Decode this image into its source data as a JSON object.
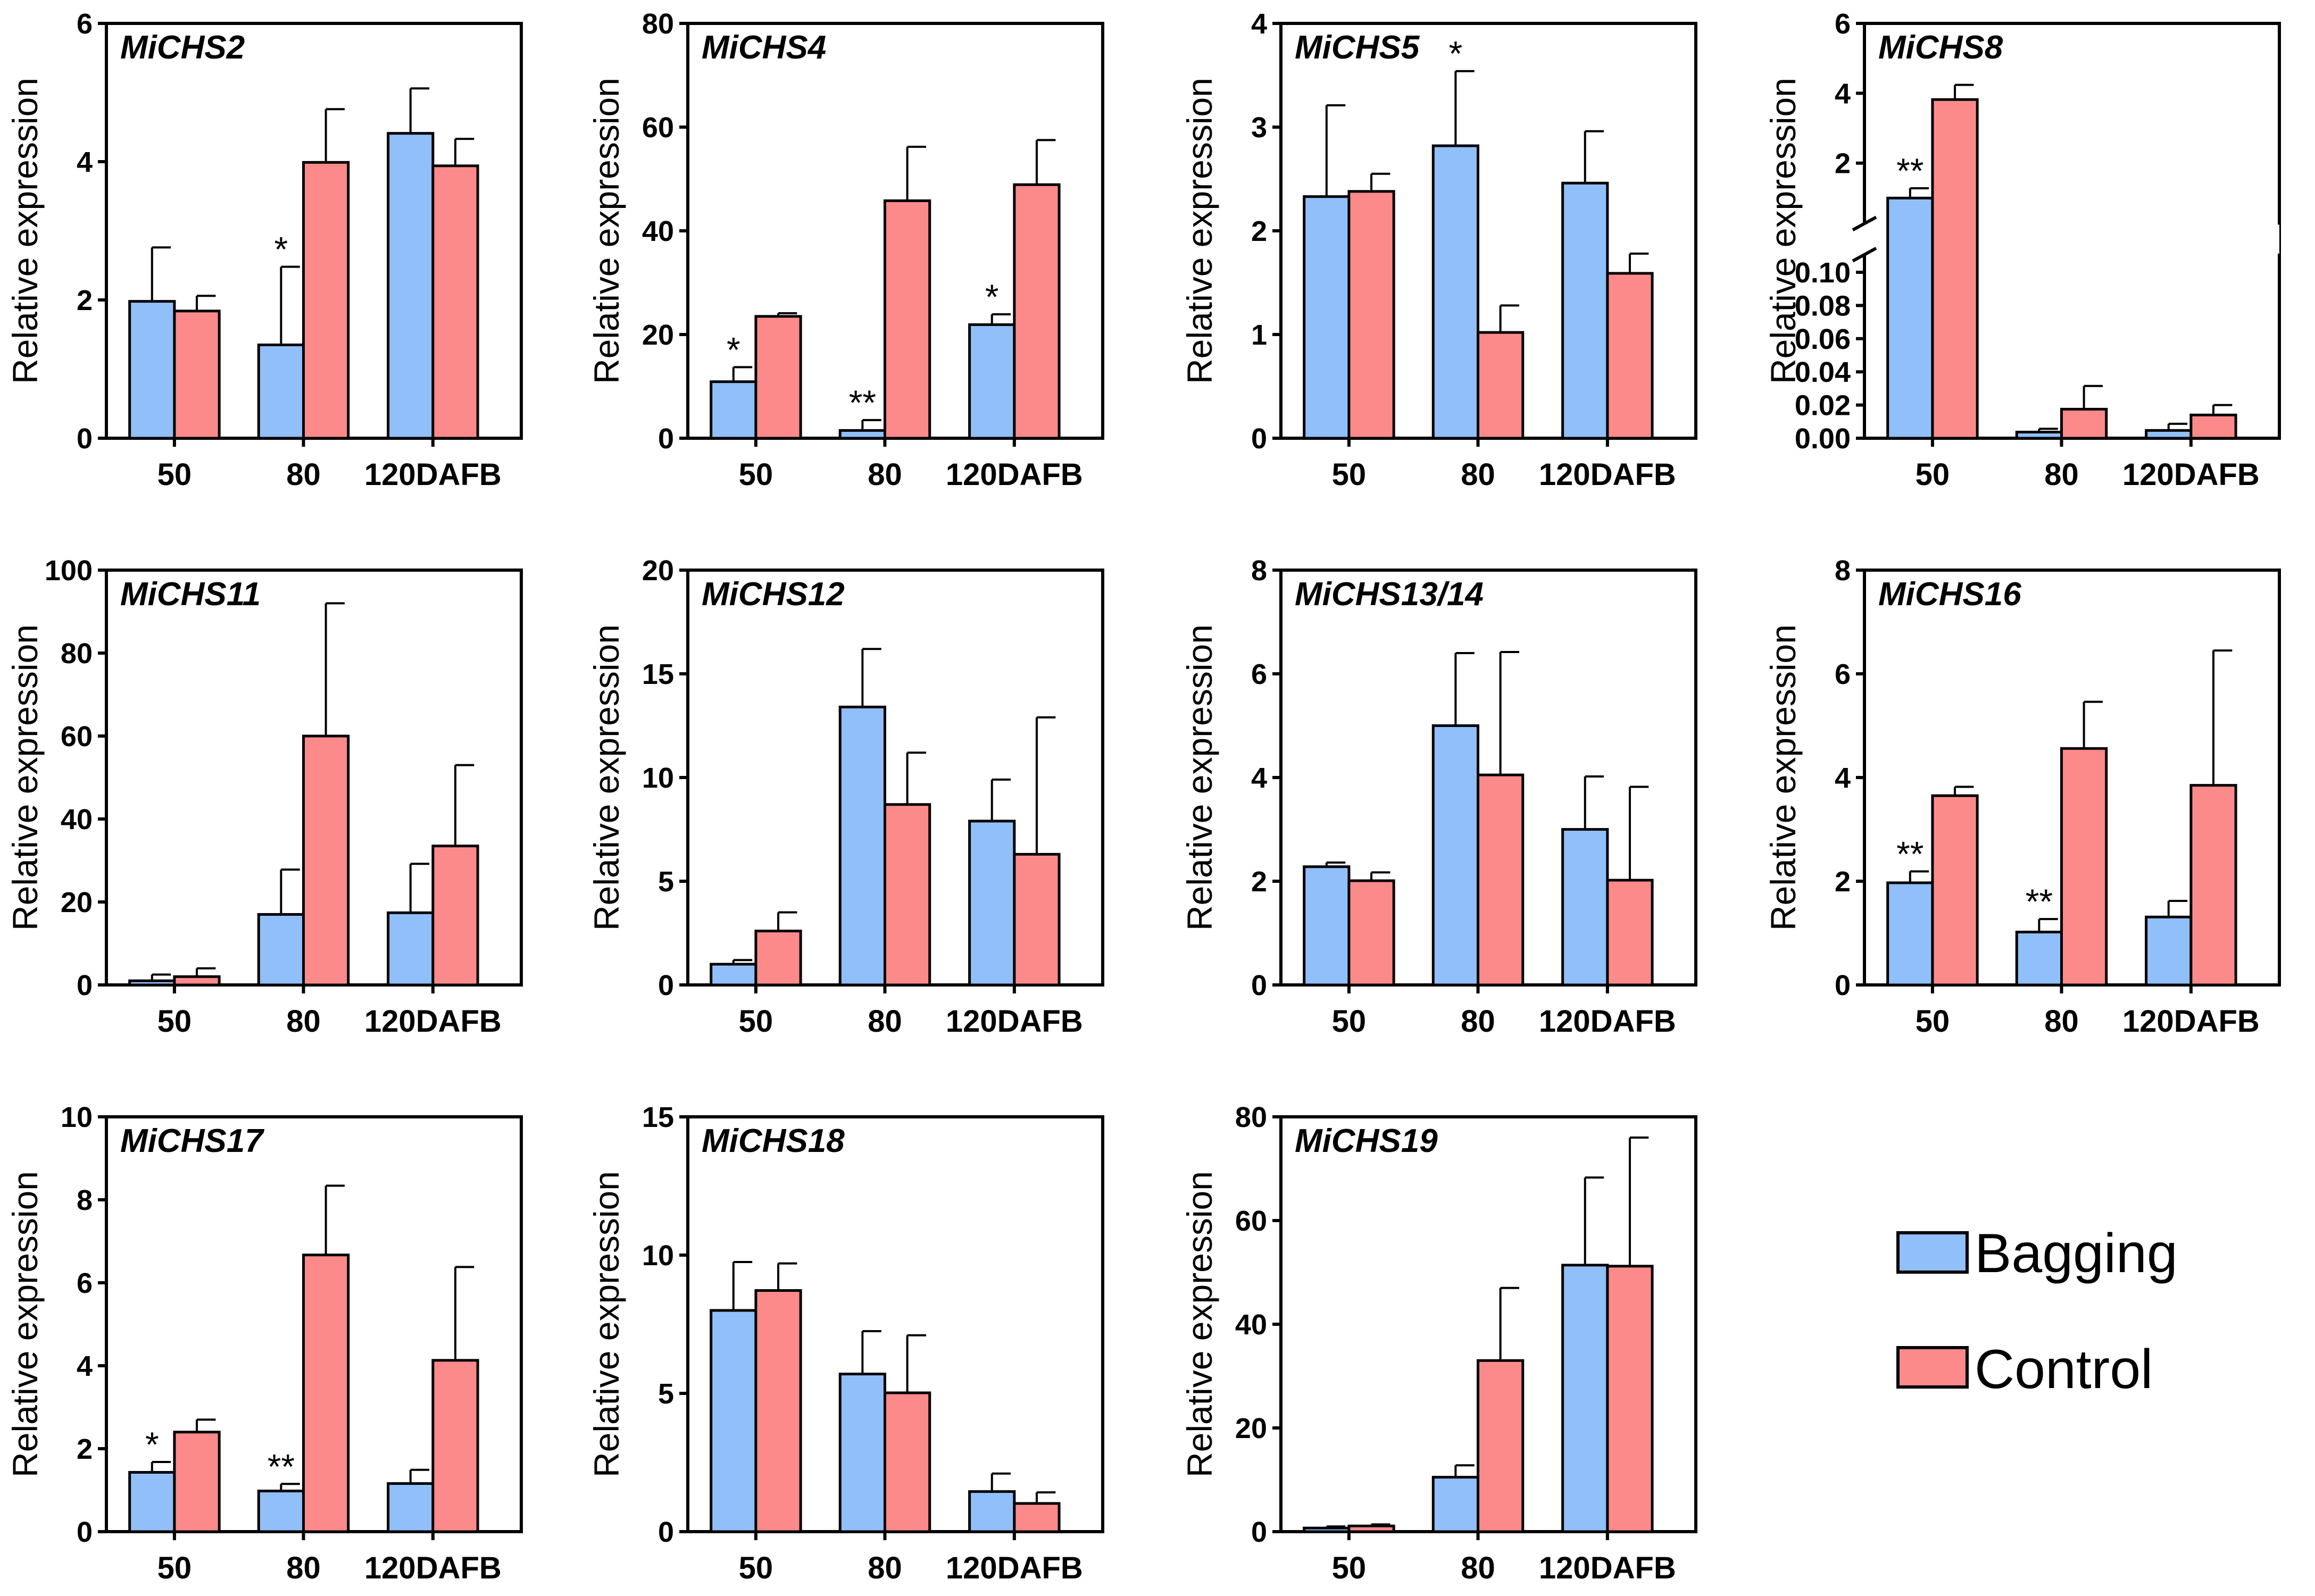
{
  "figure_description_legend": {
    "items": [
      {
        "label": "Bagging",
        "color": "#90bff9"
      },
      {
        "label": "Control",
        "color": "#fd8a8b"
      }
    ]
  },
  "colors": {
    "bagging": "#90bff9",
    "control": "#fd8a8b",
    "axis": "#000000"
  },
  "chart_data": [
    {
      "type": "bar",
      "title": "MiCHS2",
      "ylabel": "Relative expression",
      "categories": [
        "50",
        "80",
        "120DAFB"
      ],
      "ylim": [
        0,
        6
      ],
      "yticks": [
        0,
        2,
        4,
        6
      ],
      "series": [
        {
          "name": "Bagging",
          "values": [
            1.98,
            1.35,
            4.41
          ],
          "errors": [
            0.78,
            1.13,
            0.65
          ],
          "sig": [
            "",
            "*",
            ""
          ]
        },
        {
          "name": "Control",
          "values": [
            1.84,
            3.99,
            3.94
          ],
          "errors": [
            0.22,
            0.77,
            0.39
          ],
          "sig": [
            "",
            "",
            ""
          ]
        }
      ]
    },
    {
      "type": "bar",
      "title": "MiCHS4",
      "ylabel": "Relative expression",
      "categories": [
        "50",
        "80",
        "120DAFB"
      ],
      "ylim": [
        0,
        80
      ],
      "yticks": [
        0,
        20,
        40,
        60,
        80
      ],
      "series": [
        {
          "name": "Bagging",
          "values": [
            10.9,
            1.5,
            21.9
          ],
          "errors": [
            2.8,
            2.0,
            2.0
          ],
          "sig": [
            "*",
            "**",
            "*"
          ]
        },
        {
          "name": "Control",
          "values": [
            23.5,
            45.8,
            48.9
          ],
          "errors": [
            0.6,
            10.4,
            8.6
          ],
          "sig": [
            "",
            "",
            ""
          ]
        }
      ]
    },
    {
      "type": "bar",
      "title": "MiCHS5",
      "ylabel": "Relative expression",
      "categories": [
        "50",
        "80",
        "120DAFB"
      ],
      "ylim": [
        0,
        4
      ],
      "yticks": [
        0,
        1,
        2,
        3,
        4
      ],
      "series": [
        {
          "name": "Bagging",
          "values": [
            2.33,
            2.82,
            2.46
          ],
          "errors": [
            0.88,
            0.72,
            0.5
          ],
          "sig": [
            "",
            "*",
            ""
          ]
        },
        {
          "name": "Control",
          "values": [
            2.38,
            1.02,
            1.59
          ],
          "errors": [
            0.17,
            0.26,
            0.19
          ],
          "sig": [
            "",
            "",
            ""
          ]
        }
      ]
    },
    {
      "type": "bar",
      "title": "MiCHS8",
      "ylabel": "Relative expression",
      "categories": [
        "50",
        "80",
        "120DAFB"
      ],
      "ylim": [
        0,
        6
      ],
      "yticks": [
        0,
        0.02,
        0.04,
        0.06,
        0.08,
        0.1,
        2,
        4,
        6
      ],
      "ytick_labels": [
        "0.00",
        "0.02",
        "0.04",
        "0.06",
        "0.08",
        "0.10",
        "2",
        "4",
        "6"
      ],
      "axis_break": {
        "lower": [
          0,
          0.11
        ],
        "upper": [
          0.3,
          6
        ]
      },
      "series": [
        {
          "name": "Bagging",
          "values": [
            1.0,
            0.0037,
            0.0047
          ],
          "errors": [
            0.28,
            0.002,
            0.004
          ],
          "sig": [
            "**",
            "",
            ""
          ]
        },
        {
          "name": "Control",
          "values": [
            3.82,
            0.0175,
            0.014
          ],
          "errors": [
            0.42,
            0.014,
            0.006
          ],
          "sig": [
            "",
            "",
            ""
          ]
        }
      ]
    },
    {
      "type": "bar",
      "title": "MiCHS11",
      "ylabel": "Relative expression",
      "categories": [
        "50",
        "80",
        "120DAFB"
      ],
      "ylim": [
        0,
        100
      ],
      "yticks": [
        0,
        20,
        40,
        60,
        80,
        100
      ],
      "series": [
        {
          "name": "Bagging",
          "values": [
            1.0,
            17.0,
            17.4
          ],
          "errors": [
            1.5,
            10.8,
            11.8
          ],
          "sig": [
            "",
            "",
            ""
          ]
        },
        {
          "name": "Control",
          "values": [
            2.0,
            60.0,
            33.5
          ],
          "errors": [
            2.0,
            32.0,
            19.5
          ],
          "sig": [
            "",
            "",
            ""
          ]
        }
      ]
    },
    {
      "type": "bar",
      "title": "MiCHS12",
      "ylabel": "Relative expression",
      "categories": [
        "50",
        "80",
        "120DAFB"
      ],
      "ylim": [
        0,
        20
      ],
      "yticks": [
        0,
        5,
        10,
        15,
        20
      ],
      "series": [
        {
          "name": "Bagging",
          "values": [
            1.0,
            13.4,
            7.9
          ],
          "errors": [
            0.2,
            2.8,
            2.0
          ],
          "sig": [
            "",
            "",
            ""
          ]
        },
        {
          "name": "Control",
          "values": [
            2.6,
            8.7,
            6.3
          ],
          "errors": [
            0.9,
            2.5,
            6.6
          ],
          "sig": [
            "",
            "",
            ""
          ]
        }
      ]
    },
    {
      "type": "bar",
      "title": "MiCHS13/14",
      "ylabel": "Relative expression",
      "categories": [
        "50",
        "80",
        "120DAFB"
      ],
      "ylim": [
        0,
        8
      ],
      "yticks": [
        0,
        2,
        4,
        6,
        8
      ],
      "series": [
        {
          "name": "Bagging",
          "values": [
            2.28,
            5.0,
            3.0
          ],
          "errors": [
            0.08,
            1.4,
            1.02
          ],
          "sig": [
            "",
            "",
            ""
          ]
        },
        {
          "name": "Control",
          "values": [
            2.01,
            4.05,
            2.02
          ],
          "errors": [
            0.16,
            2.37,
            1.8
          ],
          "sig": [
            "",
            "",
            ""
          ]
        }
      ]
    },
    {
      "type": "bar",
      "title": "MiCHS16",
      "ylabel": "Relative expression",
      "categories": [
        "50",
        "80",
        "120DAFB"
      ],
      "ylim": [
        0,
        8
      ],
      "yticks": [
        0,
        2,
        4,
        6,
        8
      ],
      "series": [
        {
          "name": "Bagging",
          "values": [
            1.97,
            1.02,
            1.31
          ],
          "errors": [
            0.22,
            0.25,
            0.31
          ],
          "sig": [
            "**",
            "**",
            ""
          ]
        },
        {
          "name": "Control",
          "values": [
            3.65,
            4.56,
            3.85
          ],
          "errors": [
            0.17,
            0.9,
            2.6
          ],
          "sig": [
            "",
            "",
            ""
          ]
        }
      ]
    },
    {
      "type": "bar",
      "title": "MiCHS17",
      "ylabel": "Relative expression",
      "categories": [
        "50",
        "80",
        "120DAFB"
      ],
      "ylim": [
        0,
        10
      ],
      "yticks": [
        0,
        2,
        4,
        6,
        8,
        10
      ],
      "series": [
        {
          "name": "Bagging",
          "values": [
            1.43,
            0.98,
            1.16
          ],
          "errors": [
            0.25,
            0.17,
            0.33
          ],
          "sig": [
            "*",
            "**",
            ""
          ]
        },
        {
          "name": "Control",
          "values": [
            2.4,
            6.67,
            4.13
          ],
          "errors": [
            0.3,
            1.67,
            2.25
          ],
          "sig": [
            "",
            "",
            ""
          ]
        }
      ]
    },
    {
      "type": "bar",
      "title": "MiCHS18",
      "ylabel": "Relative expression",
      "categories": [
        "50",
        "80",
        "120DAFB"
      ],
      "ylim": [
        0,
        15
      ],
      "yticks": [
        0,
        5,
        10,
        15
      ],
      "series": [
        {
          "name": "Bagging",
          "values": [
            8.0,
            5.7,
            1.45
          ],
          "errors": [
            1.75,
            1.55,
            0.65
          ],
          "sig": [
            "",
            "",
            ""
          ]
        },
        {
          "name": "Control",
          "values": [
            8.72,
            5.02,
            1.02
          ],
          "errors": [
            0.98,
            2.08,
            0.4
          ],
          "sig": [
            "",
            "",
            ""
          ]
        }
      ]
    },
    {
      "type": "bar",
      "title": "MiCHS19",
      "ylabel": "Relative expression",
      "categories": [
        "50",
        "80",
        "120DAFB"
      ],
      "ylim": [
        0,
        80
      ],
      "yticks": [
        0,
        20,
        40,
        60,
        80
      ],
      "series": [
        {
          "name": "Bagging",
          "values": [
            0.7,
            10.5,
            51.4
          ],
          "errors": [
            0.3,
            2.3,
            16.9
          ],
          "sig": [
            "",
            "",
            ""
          ]
        },
        {
          "name": "Control",
          "values": [
            1.1,
            33.0,
            51.2
          ],
          "errors": [
            0.3,
            14.0,
            24.8
          ],
          "sig": [
            "",
            "",
            ""
          ]
        }
      ]
    }
  ]
}
